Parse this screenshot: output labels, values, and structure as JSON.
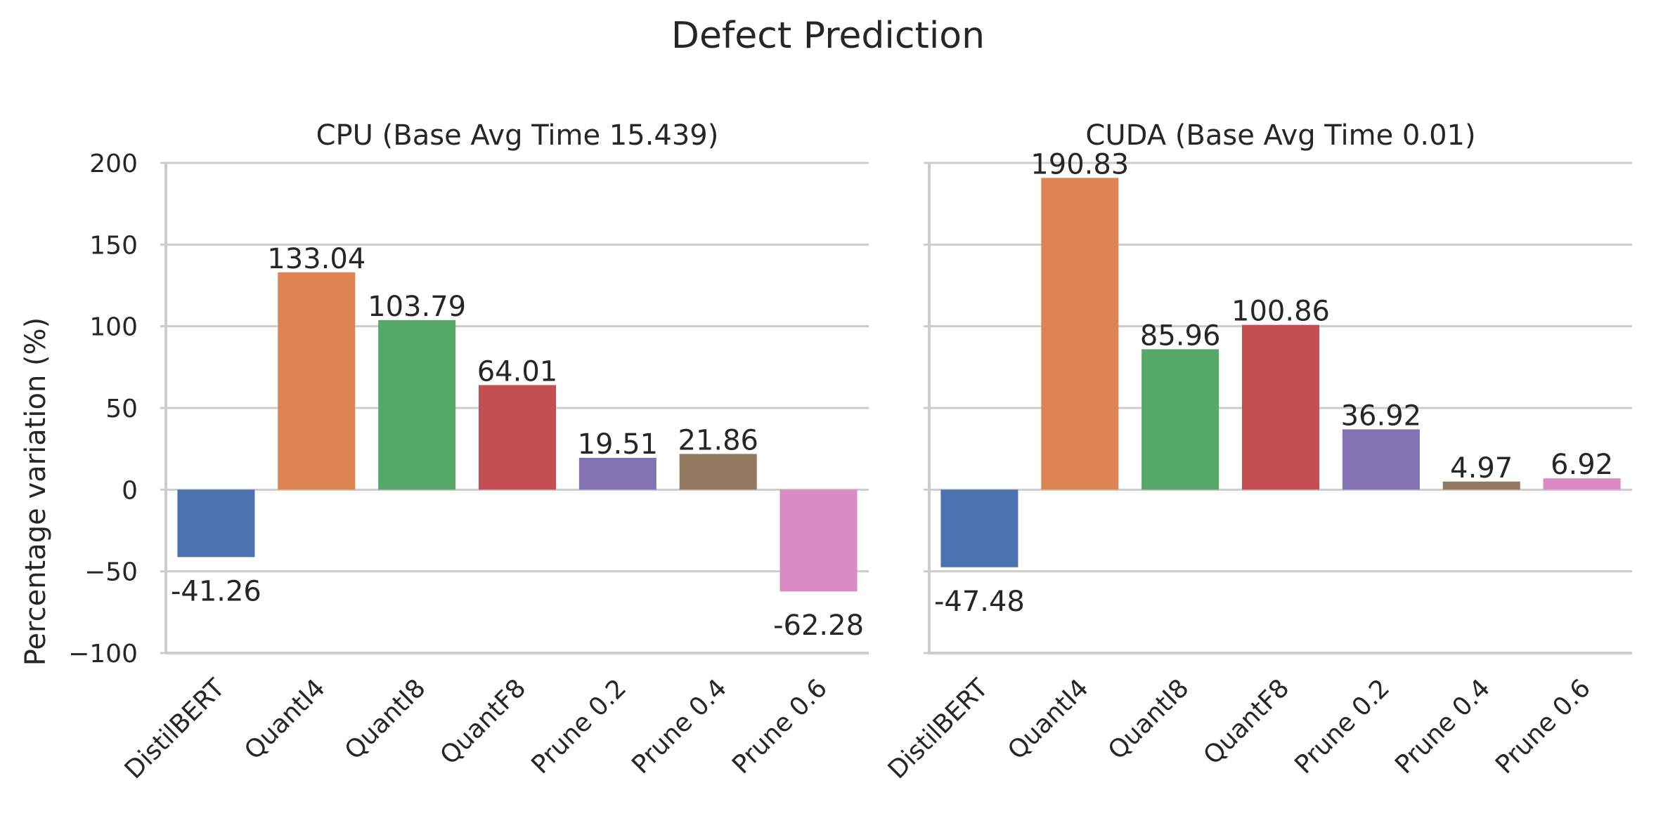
{
  "chart_data": {
    "type": "bar",
    "title": "Defect Prediction",
    "ylabel": "Percentage variation (%)",
    "ylim": [
      -100,
      200
    ],
    "yticks": [
      200,
      150,
      100,
      50,
      0,
      -50,
      -100
    ],
    "ytick_labels": [
      "200",
      "150",
      "100",
      "50",
      "0",
      "−50",
      "−100"
    ],
    "categories": [
      "DistilBERT",
      "QuantI4",
      "QuantI8",
      "QuantF8",
      "Prune 0.2",
      "Prune 0.4",
      "Prune 0.6"
    ],
    "colors": [
      "#4c72b0",
      "#dd8452",
      "#55a868",
      "#c44e52",
      "#8172b3",
      "#937860",
      "#da8bc3"
    ],
    "grid": true,
    "panels": [
      {
        "title": "CPU (Base Avg Time 15.439)",
        "values": [
          -41.26,
          133.04,
          103.79,
          64.01,
          19.51,
          21.86,
          -62.28
        ],
        "value_labels": [
          "-41.26",
          "133.04",
          "103.79",
          "64.01",
          "19.51",
          "21.86",
          "-62.28"
        ]
      },
      {
        "title": "CUDA (Base Avg Time 0.01)",
        "values": [
          -47.48,
          190.83,
          85.96,
          100.86,
          36.92,
          4.97,
          6.92
        ],
        "value_labels": [
          "-47.48",
          "190.83",
          "85.96",
          "100.86",
          "36.92",
          "4.97",
          "6.92"
        ]
      }
    ]
  }
}
